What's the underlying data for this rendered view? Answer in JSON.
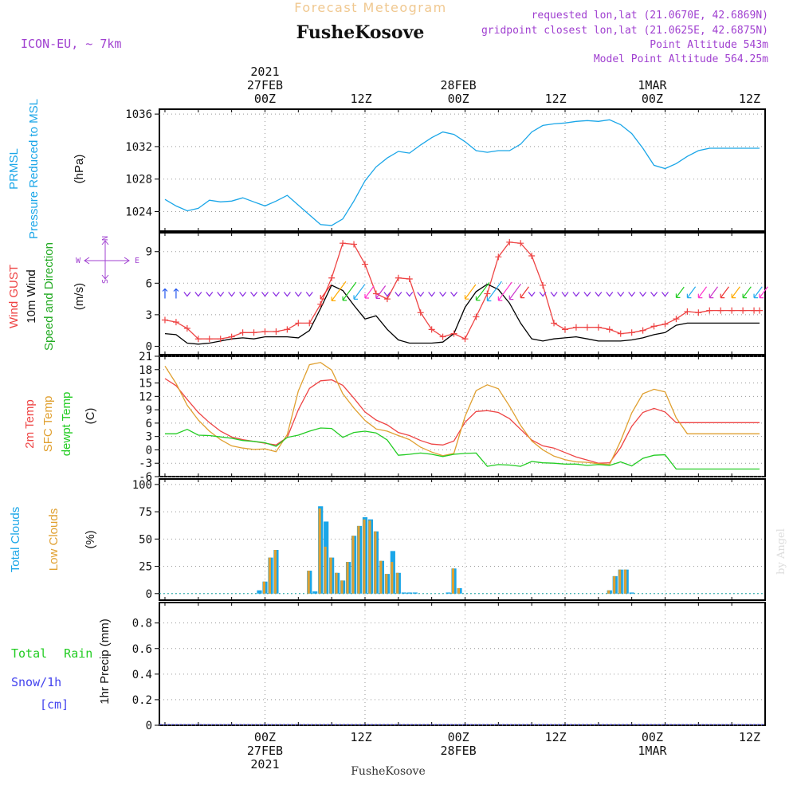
{
  "header": {
    "chart_title": "Forecast Meteogram",
    "location": "FusheKosove",
    "model": "ICON-EU, ~ 7km",
    "requested": "requested lon,lat (21.0670E, 42.6869N)",
    "closest": "gridpoint closest lon,lat (21.0625E, 42.6875N)",
    "altitude": "Point Altitude 543m",
    "model_altitude": "Model Point Altitude 564.25m"
  },
  "footer": {
    "location": "FusheKosove",
    "watermark": "by Angel"
  },
  "colors": {
    "background": "#ffffff",
    "grid": "#999999",
    "pressure": "#1aa6e8",
    "gust": "#ee4444",
    "wind": "#000000",
    "temp2m": "#ee4444",
    "sfc_temp": "#e0a030",
    "dewpt": "#22cc22",
    "total_clouds": "#1aa6e8",
    "low_clouds": "#e0a030",
    "rain": "#22cc22",
    "snow": "#4444ee",
    "title_orange": "#f0c890",
    "info_purple": "#a040d0"
  },
  "chart_data": [
    {
      "id": "pressure",
      "type": "line",
      "ylabel": [
        "PRMSL",
        "Pressure Reduced to MSL"
      ],
      "unit": "(hPa)",
      "yticks": [
        1024,
        1028,
        1032,
        1036
      ],
      "ylim": [
        1021.6,
        1036.6
      ],
      "x_hours": [
        -18,
        -16,
        -14,
        -12,
        -10,
        -8,
        -6,
        -4,
        -2,
        0,
        2,
        4,
        6,
        8,
        10,
        12,
        14,
        16,
        18,
        20,
        22,
        24,
        26,
        28,
        30,
        32,
        34,
        36,
        38,
        40,
        42,
        44,
        46,
        48,
        50,
        52,
        54,
        56,
        58,
        60,
        62,
        64,
        66,
        68,
        70,
        72,
        74,
        76,
        78,
        80,
        82,
        84,
        86,
        88,
        89
      ],
      "series": [
        {
          "values": [
            1025.5,
            1024.7,
            1024.1,
            1024.4,
            1025.4,
            1025.2,
            1025.3,
            1025.7,
            1025.2,
            1024.7,
            1025.3,
            1026,
            1024.8,
            1023.6,
            1022.4,
            1022.3,
            1023.1,
            1025.3,
            1027.8,
            1029.5,
            1030.6,
            1031.4,
            1031.2,
            1032.2,
            1033.1,
            1033.8,
            1033.5,
            1032.6,
            1031.5,
            1031.3,
            1031.5,
            1031.5,
            1032.3,
            1033.8,
            1034.6,
            1034.8,
            1034.9,
            1035.1,
            1035.2,
            1035.1,
            1035.3,
            1034.7,
            1033.6,
            1031.8,
            1029.7,
            1029.3,
            1029.9,
            1030.8,
            1031.5,
            1031.8,
            1031.8,
            1031.8,
            1031.8,
            1031.8,
            1031.8
          ]
        }
      ]
    },
    {
      "id": "wind",
      "type": "line",
      "ylabel": [
        "Wind GUST",
        "10m Wind",
        "Speed and Direction"
      ],
      "unit": "(m/s)",
      "compass": {
        "n": "N",
        "s": "S",
        "w": "W",
        "e": "E"
      },
      "yticks": [
        0,
        3,
        6,
        9
      ],
      "ylim": [
        -0.8,
        10.8
      ],
      "x_hours": [
        -18,
        -16,
        -14,
        -12,
        -10,
        -8,
        -6,
        -4,
        -2,
        0,
        2,
        4,
        6,
        8,
        10,
        12,
        14,
        16,
        18,
        20,
        22,
        24,
        26,
        28,
        30,
        32,
        34,
        36,
        38,
        40,
        42,
        44,
        46,
        48,
        50,
        52,
        54,
        56,
        58,
        60,
        62,
        64,
        66,
        68,
        70,
        72,
        74,
        76,
        78,
        80,
        82,
        84,
        86,
        88,
        89
      ],
      "series": [
        {
          "name": "Wind GUST",
          "values": [
            2.5,
            2.3,
            1.7,
            0.7,
            0.7,
            0.7,
            0.9,
            1.3,
            1.3,
            1.4,
            1.4,
            1.6,
            2.2,
            2.2,
            4,
            6.5,
            9.8,
            9.7,
            7.8,
            5,
            4.5,
            6.5,
            6.4,
            3.2,
            1.6,
            0.9,
            1.2,
            0.7,
            2.8,
            5,
            8.5,
            9.9,
            9.8,
            8.6,
            5.8,
            2.2,
            1.6,
            1.8,
            1.8,
            1.8,
            1.6,
            1.2,
            1.3,
            1.5,
            1.9,
            2.1,
            2.6,
            3.3,
            3.2,
            3.4,
            3.4,
            3.4,
            3.4,
            3.4,
            3.4
          ]
        },
        {
          "name": "10m Wind",
          "values": [
            1.2,
            1.1,
            0.3,
            0.2,
            0.3,
            0.5,
            0.7,
            0.8,
            0.7,
            0.9,
            0.9,
            0.9,
            0.8,
            1.5,
            3.6,
            5.8,
            5.3,
            3.9,
            2.6,
            2.9,
            1.6,
            0.6,
            0.3,
            0.3,
            0.3,
            0.4,
            1.2,
            3.7,
            5.2,
            5.9,
            5.4,
            4.1,
            2.2,
            0.7,
            0.5,
            0.7,
            0.8,
            0.9,
            0.7,
            0.5,
            0.5,
            0.5,
            0.6,
            0.8,
            1.1,
            1.3,
            2,
            2.2,
            2.2,
            2.2,
            2.2,
            2.2,
            2.2,
            2.2,
            2.2
          ]
        }
      ],
      "direction_row_y": 5
    },
    {
      "id": "temperature",
      "type": "line",
      "ylabel": [
        "2m Temp",
        "SFC Temp",
        "dewpt Temp"
      ],
      "unit": "(C)",
      "yticks": [
        -6,
        -3,
        0,
        3,
        6,
        9,
        12,
        15,
        18,
        21
      ],
      "ylim": [
        -6,
        21
      ],
      "x_hours": [
        -18,
        -16,
        -14,
        -12,
        -10,
        -8,
        -6,
        -4,
        -2,
        0,
        2,
        4,
        6,
        8,
        10,
        12,
        14,
        16,
        18,
        20,
        22,
        24,
        26,
        28,
        30,
        32,
        34,
        36,
        38,
        40,
        42,
        44,
        46,
        48,
        50,
        52,
        54,
        56,
        58,
        60,
        62,
        64,
        66,
        68,
        70,
        72,
        74,
        76,
        78,
        80,
        82,
        84,
        86,
        88,
        89
      ],
      "series": [
        {
          "name": "2m Temp",
          "values": [
            16,
            14.4,
            11.3,
            8.4,
            6.1,
            4.2,
            2.9,
            2.3,
            1.9,
            1.5,
            1.1,
            2.8,
            9,
            13.8,
            15.5,
            15.7,
            14.5,
            11.6,
            8.5,
            6.7,
            5.6,
            3.9,
            3.2,
            2.1,
            1.3,
            1.1,
            2,
            6.2,
            8.6,
            8.8,
            8.4,
            7,
            4.6,
            2.2,
            0.9,
            0.4,
            -0.6,
            -1.6,
            -2.3,
            -3,
            -2.9,
            0.5,
            5.3,
            8.4,
            9.3,
            8.5,
            6.1,
            6.1,
            6.1,
            6.1,
            6.1,
            6.1,
            6.1,
            6.1,
            6.1
          ]
        },
        {
          "name": "SFC Temp",
          "values": [
            18.8,
            14.9,
            10,
            6.7,
            4.2,
            2.3,
            0.9,
            0.4,
            0.1,
            0.2,
            -0.4,
            3.4,
            13.2,
            19.1,
            19.6,
            17.9,
            12.6,
            9.4,
            6.6,
            4.7,
            4.2,
            3.2,
            2.3,
            0.6,
            -0.5,
            -1.3,
            -0.8,
            7.5,
            13.3,
            14.6,
            13.7,
            9.8,
            5.5,
            2,
            0,
            -1.4,
            -2.2,
            -2.7,
            -2.8,
            -3.1,
            -3.3,
            2,
            8.3,
            12.6,
            13.6,
            13,
            7.2,
            3.6,
            3.6,
            3.6,
            3.6,
            3.6,
            3.6,
            3.6,
            3.6
          ]
        },
        {
          "name": "dewpt Temp",
          "values": [
            3.6,
            3.6,
            4.6,
            3.3,
            3.2,
            2.9,
            2.6,
            2.1,
            1.9,
            1.6,
            0.8,
            2.8,
            3.3,
            4.2,
            4.9,
            4.8,
            2.8,
            3.9,
            4.2,
            3.8,
            2.2,
            -1.2,
            -1,
            -0.7,
            -1,
            -1.5,
            -1,
            -0.8,
            -0.7,
            -3.7,
            -3.3,
            -3.4,
            -3.7,
            -2.6,
            -2.9,
            -3,
            -3.2,
            -3.2,
            -3.5,
            -3.3,
            -3.5,
            -2.7,
            -3.6,
            -1.9,
            -1.2,
            -1.1,
            -4.3,
            -4.3,
            -4.3,
            -4.3,
            -4.3,
            -4.3,
            -4.3,
            -4.3,
            -4.3
          ]
        }
      ]
    },
    {
      "id": "clouds",
      "type": "bar",
      "ylabel": [
        "Total Clouds",
        "Low Clouds"
      ],
      "unit": "(%)",
      "yticks": [
        0,
        25,
        50,
        75,
        100
      ],
      "ylim": [
        -6,
        105
      ],
      "x_hours": [
        -1,
        0,
        1,
        2,
        8,
        9,
        10,
        11,
        12,
        13,
        14,
        15,
        16,
        17,
        18,
        19,
        20,
        21,
        22,
        23,
        24,
        25,
        26,
        27,
        33,
        34,
        35,
        62,
        63,
        64,
        65,
        66
      ],
      "total": [
        3,
        11,
        33,
        40,
        21,
        2,
        80,
        66,
        33,
        19,
        12,
        29,
        53,
        62,
        70,
        68,
        57,
        30,
        18,
        39,
        19,
        1,
        1,
        1,
        1,
        23,
        5,
        3,
        16,
        22,
        22,
        1
      ],
      "low": [
        0,
        11,
        33,
        40,
        21,
        0,
        78,
        43,
        33,
        19,
        12,
        29,
        53,
        62,
        68,
        67,
        57,
        30,
        18,
        29,
        19,
        0,
        0,
        0,
        0,
        23,
        5,
        3,
        16,
        22,
        22,
        0
      ]
    },
    {
      "id": "precip",
      "type": "bar",
      "ylabel": [
        "Total Rain",
        "Snow/1h",
        "[cm]"
      ],
      "axis_label": "1hr Precip (mm)",
      "yticks": [
        0,
        0.2,
        0.4,
        0.6,
        0.8
      ],
      "ylim": [
        0,
        0.96
      ],
      "values": []
    }
  ],
  "xaxis": {
    "range_hours": [
      -19,
      90
    ],
    "grid_hours": [
      0,
      18,
      36,
      54,
      72,
      90
    ],
    "top_labels": [
      {
        "h": 0,
        "lines": [
          "2021",
          "27FEB",
          "00Z"
        ]
      },
      {
        "h": 17.3,
        "lines": [
          "12Z"
        ]
      },
      {
        "h": 34.8,
        "lines": [
          "28FEB",
          "00Z"
        ]
      },
      {
        "h": 52.3,
        "lines": [
          "12Z"
        ]
      },
      {
        "h": 69.7,
        "lines": [
          "1MAR",
          "00Z"
        ]
      },
      {
        "h": 87.2,
        "lines": [
          "12Z"
        ]
      }
    ],
    "bottom_labels": [
      {
        "h": 0,
        "lines": [
          "00Z",
          "27FEB",
          "2021"
        ]
      },
      {
        "h": 17.3,
        "lines": [
          "12Z"
        ]
      },
      {
        "h": 34.8,
        "lines": [
          "00Z",
          "28FEB"
        ]
      },
      {
        "h": 52.3,
        "lines": [
          "12Z"
        ]
      },
      {
        "h": 69.7,
        "lines": [
          "00Z",
          "1MAR"
        ]
      },
      {
        "h": 87.2,
        "lines": [
          "12Z"
        ]
      }
    ]
  }
}
